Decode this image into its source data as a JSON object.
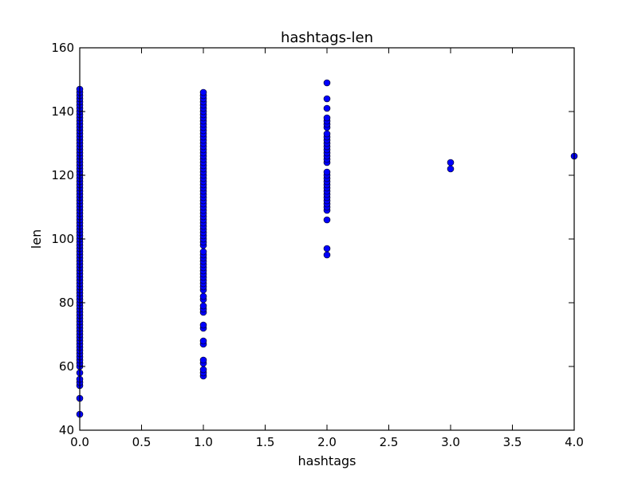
{
  "chart_data": {
    "type": "scatter",
    "title": "hashtags-len",
    "xlabel": "hashtags",
    "ylabel": "len",
    "xlim": [
      0.0,
      4.0
    ],
    "ylim": [
      40,
      160
    ],
    "xticks": [
      0.0,
      0.5,
      1.0,
      1.5,
      2.0,
      2.5,
      3.0,
      3.5,
      4.0
    ],
    "xtick_labels": [
      "0.0",
      "0.5",
      "1.0",
      "1.5",
      "2.0",
      "2.5",
      "3.0",
      "3.5",
      "4.0"
    ],
    "yticks": [
      40,
      60,
      80,
      100,
      120,
      140,
      160
    ],
    "ytick_labels": [
      "40",
      "60",
      "80",
      "100",
      "120",
      "140",
      "160"
    ],
    "grid": false,
    "marker_color": "#0000ff",
    "series": [
      {
        "groups": [
          {
            "x": 0,
            "y": [
              45,
              50,
              54,
              55,
              56,
              58,
              60,
              61,
              62,
              63,
              64,
              65,
              66,
              67,
              68,
              69,
              70,
              71,
              72,
              73,
              74,
              75,
              76,
              77,
              78,
              79,
              80,
              81,
              82,
              83,
              84,
              85,
              86,
              87,
              88,
              89,
              90,
              91,
              92,
              93,
              94,
              95,
              96,
              97,
              98,
              99,
              100,
              101,
              102,
              103,
              104,
              105,
              106,
              107,
              108,
              109,
              110,
              111,
              112,
              113,
              114,
              115,
              116,
              117,
              118,
              119,
              120,
              121,
              122,
              123,
              124,
              125,
              126,
              127,
              128,
              129,
              130,
              131,
              132,
              133,
              134,
              135,
              136,
              137,
              138,
              139,
              140,
              141,
              142,
              143,
              144,
              145,
              146,
              147
            ]
          },
          {
            "x": 1,
            "y": [
              57,
              58,
              59,
              61,
              62,
              67,
              68,
              72,
              73,
              77,
              78,
              79,
              81,
              82,
              84,
              85,
              86,
              87,
              88,
              89,
              90,
              91,
              92,
              93,
              94,
              95,
              96,
              98,
              99,
              100,
              101,
              102,
              103,
              104,
              105,
              106,
              107,
              108,
              109,
              110,
              111,
              112,
              113,
              114,
              115,
              116,
              117,
              118,
              119,
              120,
              121,
              122,
              123,
              124,
              125,
              126,
              127,
              128,
              129,
              130,
              131,
              132,
              133,
              134,
              135,
              136,
              137,
              138,
              139,
              140,
              141,
              142,
              143,
              144,
              145,
              146
            ]
          },
          {
            "x": 2,
            "y": [
              95,
              97,
              106,
              109,
              110,
              111,
              112,
              113,
              114,
              115,
              116,
              117,
              118,
              119,
              120,
              121,
              124,
              125,
              126,
              127,
              128,
              129,
              130,
              131,
              132,
              133,
              135,
              136,
              137,
              138,
              141,
              144,
              149
            ]
          },
          {
            "x": 3,
            "y": [
              122,
              124
            ]
          },
          {
            "x": 4,
            "y": [
              126
            ]
          }
        ]
      }
    ]
  }
}
